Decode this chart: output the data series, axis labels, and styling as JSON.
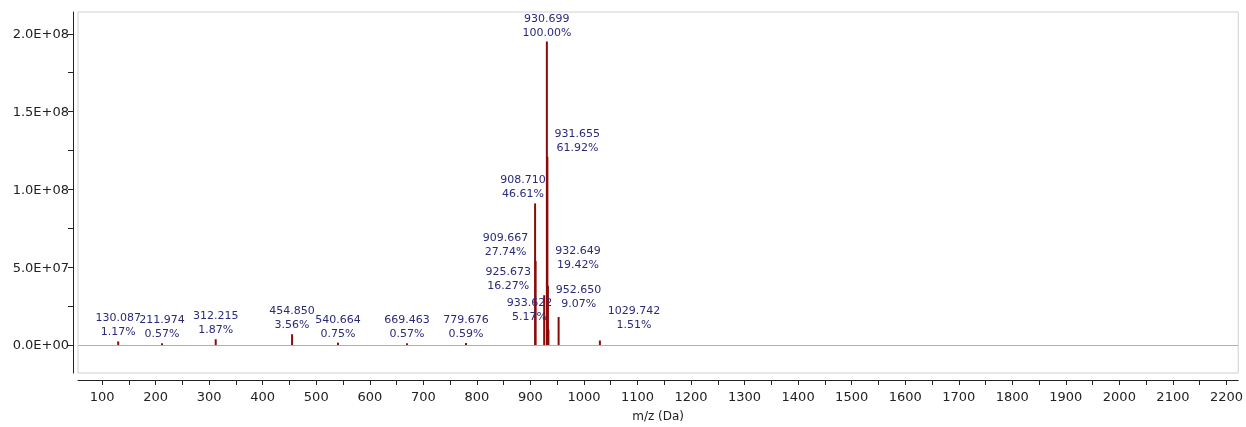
{
  "chart_data": {
    "type": "bar",
    "xlabel": "m/z (Da)",
    "x": [
      130.087,
      211.974,
      312.215,
      454.85,
      540.664,
      669.463,
      779.676,
      908.71,
      909.667,
      925.673,
      930.699,
      931.655,
      932.649,
      933.622,
      952.65,
      1029.742
    ],
    "values": [
      2300000,
      1100000,
      3700000,
      6900000,
      1500000,
      1100000,
      1200000,
      91000000,
      54000000,
      32000000,
      195000000,
      121000000,
      38000000,
      10000000,
      18000000,
      2900000
    ],
    "annotations": [
      {
        "text": "130.087\n1.17%",
        "x": 130.087,
        "y": 2300000
      },
      {
        "text": "211.974\n0.57%",
        "x": 211.974,
        "y": 1100000
      },
      {
        "text": "312.215\n1.87%",
        "x": 312.215,
        "y": 3700000
      },
      {
        "text": "454.850\n3.56%",
        "x": 454.85,
        "y": 6900000
      },
      {
        "text": "540.664\n0.75%",
        "x": 540.664,
        "y": 1500000
      },
      {
        "text": "669.463\n0.57%",
        "x": 669.463,
        "y": 1100000
      },
      {
        "text": "779.676\n0.59%",
        "x": 779.676,
        "y": 1200000
      },
      {
        "text": "908.710\n46.61%",
        "x": 908.71,
        "y": 91000000
      },
      {
        "text": "909.667\n27.74%",
        "x": 909.667,
        "y": 54000000
      },
      {
        "text": "925.673\n16.27%",
        "x": 925.673,
        "y": 32000000
      },
      {
        "text": "930.699\n100.00%",
        "x": 930.699,
        "y": 195000000
      },
      {
        "text": "931.655\n61.92%",
        "x": 931.655,
        "y": 121000000
      },
      {
        "text": "932.649\n19.42%",
        "x": 932.649,
        "y": 38000000
      },
      {
        "text": "933.622\n5.17%",
        "x": 933.622,
        "y": 10000000
      },
      {
        "text": "952.650\n9.07%",
        "x": 952.65,
        "y": 18000000
      },
      {
        "text": "1029.742\n1.51%",
        "x": 1029.742,
        "y": 2900000
      }
    ],
    "color": "#8b0a0a",
    "xlim": [
      55,
      2222
    ],
    "xticks": [
      100,
      {
        "value": 150,
        "label": null
      },
      200,
      {
        "value": 250,
        "label": null
      },
      300,
      {
        "value": 350,
        "label": null
      },
      400,
      {
        "value": 450,
        "label": null
      },
      500,
      {
        "value": 550,
        "label": null
      },
      600,
      {
        "value": 650,
        "label": null
      },
      700,
      {
        "value": 750,
        "label": null
      },
      800,
      {
        "value": 850,
        "label": null
      },
      900,
      {
        "value": 950,
        "label": null
      },
      1000,
      {
        "value": 1050,
        "label": null
      },
      1100,
      {
        "value": 1150,
        "label": null
      },
      1200,
      {
        "value": 1250,
        "label": null
      },
      1300,
      {
        "value": 1350,
        "label": null
      },
      1400,
      {
        "value": 1450,
        "label": null
      },
      1500,
      {
        "value": 1550,
        "label": null
      },
      1600,
      {
        "value": 1650,
        "label": null
      },
      1700,
      {
        "value": 1750,
        "label": null
      },
      1800,
      {
        "value": 1850,
        "label": null
      },
      1900,
      {
        "value": 1950,
        "label": null
      },
      2000,
      {
        "value": 2050,
        "label": null
      },
      2100,
      {
        "value": 2150,
        "label": null
      },
      2200
    ],
    "ylim": [
      -18000000,
      214000000
    ],
    "yticks": [
      {
        "value": 0,
        "label": "0.0E+00"
      },
      {
        "value": 25000000,
        "label": null
      },
      {
        "value": 50000000,
        "label": "5.0E+07"
      },
      {
        "value": 75000000,
        "label": null
      },
      {
        "value": 100000000,
        "label": "1.0E+08"
      },
      {
        "value": 125000000,
        "label": null
      },
      {
        "value": 150000000,
        "label": "1.5E+08"
      },
      {
        "value": 175000000,
        "label": null
      },
      {
        "value": 200000000,
        "label": "2.0E+08"
      }
    ],
    "ref_lines": [
      {
        "axis": "y",
        "value": 0,
        "color": "#b0b0b0"
      }
    ],
    "grid": false
  }
}
